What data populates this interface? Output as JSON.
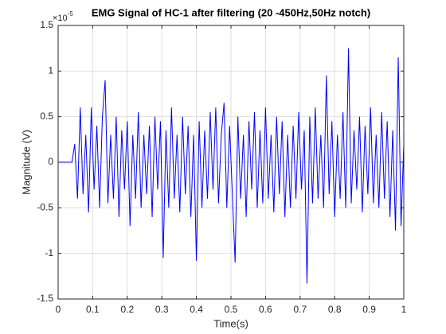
{
  "chart_data": {
    "type": "line",
    "title": "EMG Signal of HC-1 after filtering (20 -450Hz,50Hz notch)",
    "x_label": "Time(s)",
    "y_label": "Magnitude (V)",
    "y_exponent_base": "×10",
    "y_exponent": "-5",
    "x": [
      0,
      0.04,
      0.048,
      0.056,
      0.064,
      0.072,
      0.08,
      0.088,
      0.096,
      0.104,
      0.112,
      0.12,
      0.128,
      0.136,
      0.144,
      0.152,
      0.16,
      0.168,
      0.176,
      0.184,
      0.192,
      0.2,
      0.208,
      0.216,
      0.224,
      0.232,
      0.24,
      0.248,
      0.256,
      0.264,
      0.272,
      0.28,
      0.288,
      0.296,
      0.304,
      0.312,
      0.32,
      0.328,
      0.336,
      0.344,
      0.352,
      0.36,
      0.368,
      0.376,
      0.384,
      0.392,
      0.4,
      0.408,
      0.416,
      0.424,
      0.432,
      0.44,
      0.448,
      0.456,
      0.464,
      0.472,
      0.48,
      0.488,
      0.496,
      0.504,
      0.512,
      0.52,
      0.528,
      0.536,
      0.544,
      0.552,
      0.56,
      0.568,
      0.576,
      0.584,
      0.592,
      0.6,
      0.608,
      0.616,
      0.624,
      0.632,
      0.64,
      0.648,
      0.656,
      0.664,
      0.672,
      0.68,
      0.688,
      0.696,
      0.704,
      0.712,
      0.72,
      0.728,
      0.736,
      0.744,
      0.752,
      0.76,
      0.768,
      0.776,
      0.784,
      0.792,
      0.8,
      0.808,
      0.816,
      0.824,
      0.832,
      0.84,
      0.848,
      0.856,
      0.864,
      0.872,
      0.88,
      0.888,
      0.896,
      0.904,
      0.912,
      0.92,
      0.928,
      0.936,
      0.944,
      0.952,
      0.96,
      0.968,
      0.976,
      0.984,
      0.992,
      1.0
    ],
    "series": [
      {
        "name": "EMG",
        "color": "#0000ff",
        "values": [
          0,
          0,
          0.2,
          -0.4,
          0.6,
          -0.35,
          0.3,
          -0.55,
          0.6,
          -0.3,
          0.4,
          -0.5,
          0.5,
          0.9,
          -0.45,
          0.3,
          -0.4,
          0.5,
          -0.6,
          0.35,
          -0.3,
          0.45,
          -0.7,
          0.3,
          -0.4,
          0.55,
          -0.5,
          0.3,
          -0.35,
          0.4,
          -0.6,
          0.5,
          -0.3,
          0.45,
          -1.05,
          0.35,
          -0.5,
          0.6,
          -0.4,
          0.3,
          -0.55,
          0.5,
          -0.35,
          0.4,
          -0.6,
          0.3,
          -1.08,
          0.45,
          -0.5,
          0.35,
          -0.4,
          0.55,
          -0.3,
          0.6,
          -0.45,
          0.3,
          0.65,
          -0.5,
          0.4,
          -0.35,
          -1.1,
          0.5,
          -0.4,
          0.3,
          -0.6,
          0.45,
          -0.3,
          0.55,
          -0.5,
          0.35,
          -0.45,
          0.6,
          -0.4,
          0.3,
          -0.55,
          0.5,
          -0.35,
          0.45,
          -0.6,
          0.3,
          -0.5,
          0.4,
          -0.4,
          0.55,
          -0.3,
          0.35,
          -1.33,
          0.5,
          -0.45,
          0.6,
          -0.4,
          0.3,
          -0.5,
          0.95,
          -0.35,
          0.45,
          -0.6,
          0.3,
          -0.4,
          0.55,
          -0.5,
          1.25,
          -0.45,
          0.35,
          -0.3,
          0.5,
          -0.55,
          0.4,
          -0.35,
          0.6,
          -0.45,
          0.3,
          -0.5,
          0.55,
          -0.4,
          0.45,
          -0.6,
          0.35,
          -0.75,
          1.15,
          -0.7,
          0.2
        ]
      }
    ],
    "xlim": [
      0,
      1
    ],
    "xticks": [
      0,
      0.1,
      0.2,
      0.3,
      0.4,
      0.5,
      0.6,
      0.7,
      0.8,
      0.9,
      1
    ],
    "ylim": [
      -1.5,
      1.5
    ],
    "yticks": [
      -1.5,
      -1,
      -0.5,
      0,
      0.5,
      1,
      1.5
    ],
    "grid": true
  }
}
